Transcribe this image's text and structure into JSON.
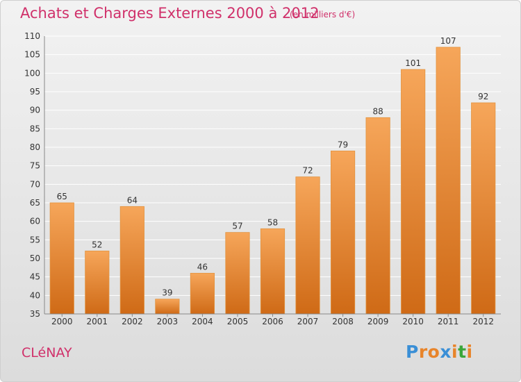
{
  "header": {
    "title": "Achats et Charges Externes 2000 à 2012",
    "unit": "(en milliers d'€)"
  },
  "footer": {
    "city": "CLéNAY",
    "logo_letters": [
      "P",
      "r",
      "o",
      "x",
      "i",
      "t",
      "i"
    ],
    "logo_colors": [
      "#3a8fd6",
      "#e8842a",
      "#e8842a",
      "#3a8fd6",
      "#e8842a",
      "#3aa63a",
      "#e8842a"
    ]
  },
  "colors": {
    "accent": "#d0306a",
    "bar_top": "#f6a65a",
    "bar_bottom": "#cf6a16",
    "grid": "#ffffff"
  },
  "chart_data": {
    "type": "bar",
    "title": "Achats et Charges Externes 2000 à 2012",
    "subtitle": "(en milliers d'€)",
    "xlabel": "",
    "ylabel": "",
    "categories": [
      "2000",
      "2001",
      "2002",
      "2003",
      "2004",
      "2005",
      "2006",
      "2007",
      "2008",
      "2009",
      "2010",
      "2011",
      "2012"
    ],
    "values": [
      65,
      52,
      64,
      39,
      46,
      57,
      58,
      72,
      79,
      88,
      101,
      107,
      92
    ],
    "ylim": [
      35,
      110
    ],
    "yticks": [
      35,
      40,
      45,
      50,
      55,
      60,
      65,
      70,
      75,
      80,
      85,
      90,
      95,
      100,
      105,
      110
    ],
    "grid": true,
    "legend": "none"
  }
}
